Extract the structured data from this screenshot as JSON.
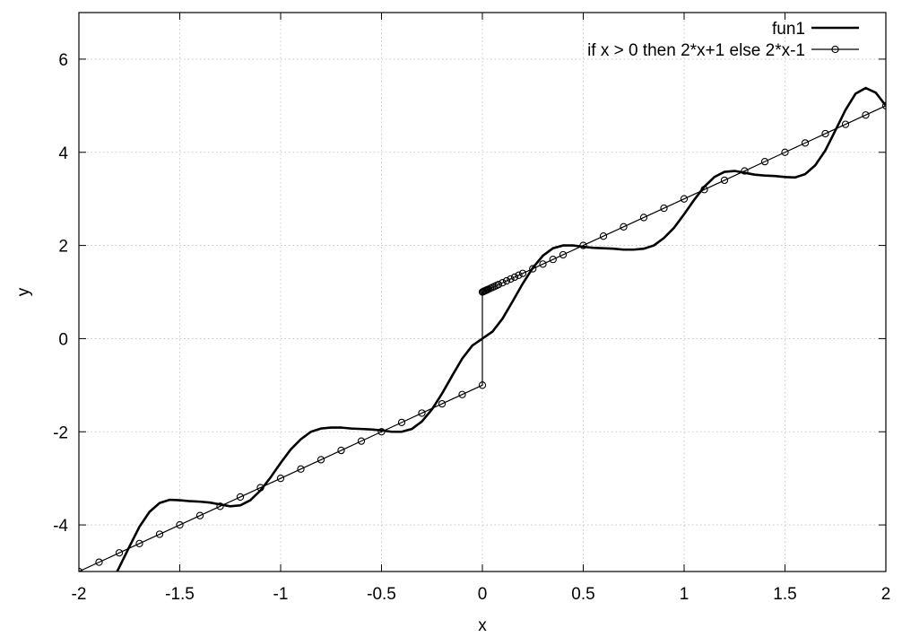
{
  "chart_data": {
    "type": "line",
    "xlabel": "x",
    "ylabel": "y",
    "xlim": [
      -2,
      2
    ],
    "ylim": [
      -5,
      7
    ],
    "xticks": [
      -2,
      -1.5,
      -1,
      -0.5,
      0,
      0.5,
      1,
      1.5,
      2
    ],
    "xtick_labels": [
      "-2",
      "-1.5",
      "-1",
      "-0.5",
      "0",
      "0.5",
      "1",
      "1.5",
      "2"
    ],
    "yticks": [
      -4,
      -2,
      0,
      2,
      4,
      6
    ],
    "ytick_labels": [
      "-4",
      "-2",
      "0",
      "2",
      "4",
      "6"
    ],
    "grid": true,
    "legend_position": "top-right",
    "series": [
      {
        "name": "fun1",
        "style": "thick-line",
        "x": [
          -1.82,
          -1.8,
          -1.75,
          -1.7,
          -1.65,
          -1.6,
          -1.55,
          -1.5,
          -1.45,
          -1.4,
          -1.35,
          -1.3,
          -1.25,
          -1.2,
          -1.15,
          -1.1,
          -1.05,
          -1.0,
          -0.95,
          -0.9,
          -0.85,
          -0.8,
          -0.75,
          -0.7,
          -0.65,
          -0.6,
          -0.55,
          -0.5,
          -0.45,
          -0.4,
          -0.35,
          -0.3,
          -0.25,
          -0.2,
          -0.15,
          -0.1,
          -0.05,
          0.0,
          0.05,
          0.1,
          0.15,
          0.2,
          0.25,
          0.3,
          0.35,
          0.4,
          0.45,
          0.5,
          0.55,
          0.6,
          0.65,
          0.7,
          0.75,
          0.8,
          0.85,
          0.9,
          0.95,
          1.0,
          1.05,
          1.1,
          1.15,
          1.2,
          1.25,
          1.3,
          1.35,
          1.4,
          1.45,
          1.5,
          1.55,
          1.6,
          1.65,
          1.7,
          1.75,
          1.8,
          1.85,
          1.9,
          1.95,
          2.0
        ],
        "y": [
          -5.08,
          -4.91,
          -4.47,
          -4.04,
          -3.72,
          -3.53,
          -3.46,
          -3.47,
          -3.49,
          -3.5,
          -3.52,
          -3.56,
          -3.6,
          -3.58,
          -3.47,
          -3.26,
          -2.98,
          -2.67,
          -2.38,
          -2.16,
          -2.0,
          -1.93,
          -1.91,
          -1.91,
          -1.93,
          -1.94,
          -1.95,
          -1.97,
          -2.0,
          -2.0,
          -1.94,
          -1.78,
          -1.52,
          -1.18,
          -0.8,
          -0.43,
          -0.15,
          0.0,
          0.15,
          0.43,
          0.8,
          1.18,
          1.52,
          1.78,
          1.94,
          2.0,
          2.0,
          1.97,
          1.95,
          1.94,
          1.93,
          1.91,
          1.91,
          1.93,
          2.0,
          2.16,
          2.38,
          2.67,
          2.98,
          3.26,
          3.47,
          3.58,
          3.6,
          3.56,
          3.52,
          3.5,
          3.49,
          3.47,
          3.46,
          3.53,
          3.72,
          4.04,
          4.47,
          4.91,
          5.26,
          5.38,
          5.28,
          5.0
        ]
      },
      {
        "name": "if x > 0 then 2*x+1 else 2*x-1",
        "style": "line-with-circle-markers",
        "x": [
          -2,
          -1.9,
          -1.8,
          -1.7,
          -1.6,
          -1.5,
          -1.4,
          -1.3,
          -1.2,
          -1.1,
          -1.0,
          -0.9,
          -0.8,
          -0.7,
          -0.6,
          -0.5,
          -0.4,
          -0.3,
          -0.2,
          -0.1,
          0,
          0.0,
          0.005,
          0.01,
          0.015,
          0.02,
          0.025,
          0.03,
          0.04,
          0.05,
          0.06,
          0.07,
          0.08,
          0.1,
          0.12,
          0.14,
          0.16,
          0.18,
          0.2,
          0.25,
          0.3,
          0.35,
          0.4,
          0.5,
          0.6,
          0.7,
          0.8,
          0.9,
          1.0,
          1.1,
          1.2,
          1.3,
          1.4,
          1.5,
          1.6,
          1.7,
          1.8,
          1.9,
          2.0
        ],
        "y": [
          -5,
          -4.8,
          -4.6,
          -4.4,
          -4.2,
          -4.0,
          -3.8,
          -3.6,
          -3.4,
          -3.2,
          -3.0,
          -2.8,
          -2.6,
          -2.4,
          -2.2,
          -2.0,
          -1.8,
          -1.6,
          -1.4,
          -1.2,
          -1,
          1.0,
          1.01,
          1.02,
          1.03,
          1.04,
          1.05,
          1.06,
          1.08,
          1.1,
          1.12,
          1.14,
          1.16,
          1.2,
          1.24,
          1.28,
          1.32,
          1.36,
          1.4,
          1.5,
          1.6,
          1.7,
          1.8,
          2.0,
          2.2,
          2.4,
          2.6,
          2.8,
          3.0,
          3.2,
          3.4,
          3.6,
          3.8,
          4.0,
          4.2,
          4.4,
          4.6,
          4.8,
          5.0
        ]
      }
    ]
  }
}
